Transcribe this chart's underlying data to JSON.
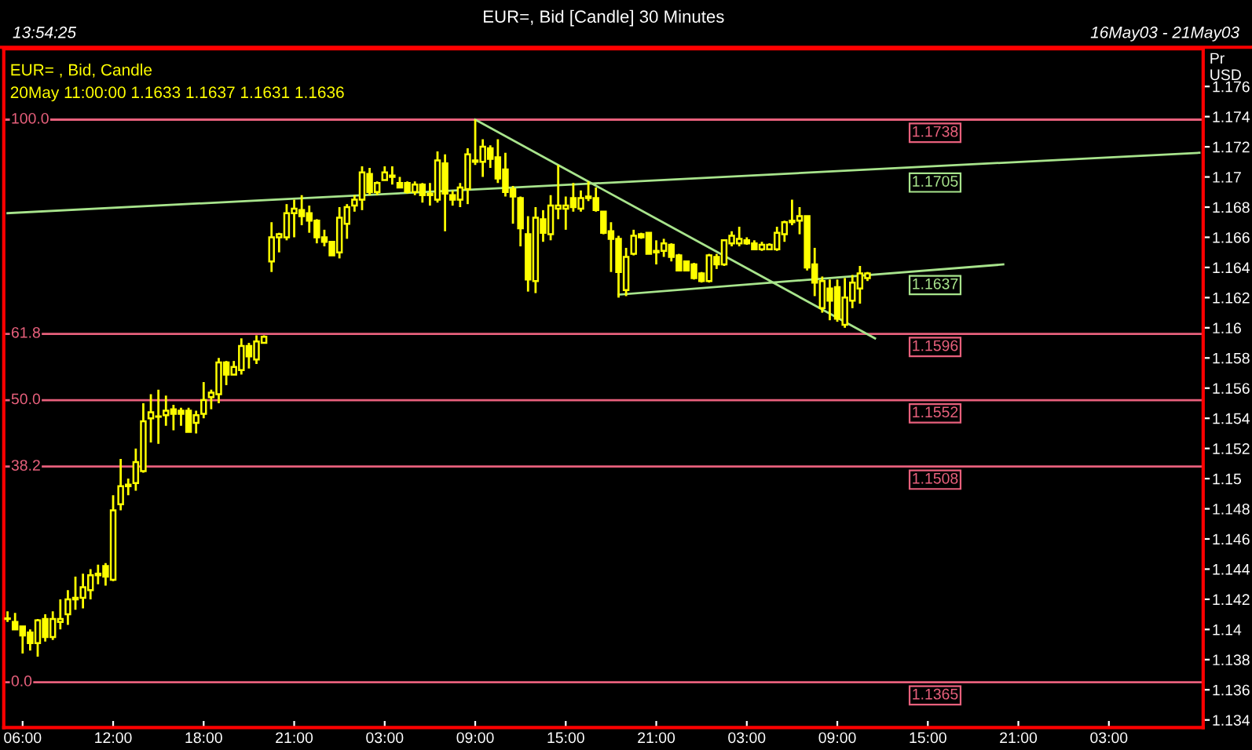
{
  "chart_data": {
    "type": "candlestick",
    "title": "EUR=, Bid [Candle] 30 Minutes",
    "ylabel": "Pr\nUSD",
    "annotations": [
      "13:54:25",
      "16May03 - 21May03",
      "EUR= , Bid, Candle",
      "20May 11:00:00 1.1633 1.1637 1.1631 1.1636",
      {
        "text": "1.1705",
        "y": 1.1705
      },
      {
        "text": "1.1637",
        "y": 1.1637
      },
      {
        "text": "100.0",
        "y": 1.1738
      },
      {
        "text": "61.8",
        "y": 1.1596
      },
      {
        "text": "50.0",
        "y": 1.1552
      },
      {
        "text": "38.2",
        "y": 1.1508
      },
      {
        "text": "0.0",
        "y": 1.1365
      }
    ],
    "color": "#ffff00",
    "categories": [
      null,
      null,
      "06:00",
      null,
      null,
      null,
      null,
      null,
      null,
      null,
      null,
      null,
      null,
      null,
      "12:00",
      null,
      null,
      null,
      null,
      null,
      null,
      null,
      null,
      null,
      null,
      null,
      "18:00",
      null,
      null,
      null,
      null,
      null,
      null,
      null,
      null,
      null,
      null,
      null,
      "21:00",
      null,
      null,
      null,
      null,
      null,
      null,
      null,
      null,
      null,
      null,
      null,
      "03:00",
      null,
      null,
      null,
      null,
      null,
      null,
      null,
      null,
      null,
      null,
      null,
      "09:00",
      null,
      null,
      null,
      null,
      null,
      null,
      null,
      null,
      null,
      null,
      null,
      "15:00",
      null,
      null,
      null,
      null,
      null,
      null,
      null,
      null,
      null,
      null,
      null,
      "21:00",
      null,
      null,
      null,
      null,
      null,
      null,
      null,
      null,
      null,
      null,
      null,
      "03:00",
      null,
      null,
      null,
      null,
      null,
      null,
      null,
      null,
      null,
      null,
      null,
      "09:00",
      null,
      null,
      null,
      null,
      null,
      null,
      null,
      null,
      null,
      null,
      null,
      "15:00",
      null,
      null,
      null,
      null,
      null,
      null,
      null,
      null,
      null,
      null,
      null,
      "21:00",
      null,
      null,
      null,
      null,
      null,
      null,
      null,
      null,
      null,
      null,
      null,
      "03:00",
      null,
      null,
      null,
      null,
      null,
      null,
      null,
      null,
      null,
      null,
      null,
      null
    ],
    "ohlc": [
      [
        1.1407,
        1.1412,
        1.1405,
        1.1407
      ],
      [
        1.1405,
        1.1411,
        1.14,
        1.14
      ],
      [
        1.1402,
        1.1402,
        1.1384,
        1.1396
      ],
      [
        1.1398,
        1.14,
        1.1386,
        1.1391
      ],
      [
        1.1391,
        1.1407,
        1.1382,
        1.1406
      ],
      [
        1.1407,
        1.141,
        1.1392,
        1.1395
      ],
      [
        1.1395,
        1.1412,
        1.1393,
        1.1407
      ],
      [
        1.1405,
        1.142,
        1.14,
        1.1407
      ],
      [
        1.141,
        1.1426,
        1.1403,
        1.142
      ],
      [
        1.1421,
        1.1435,
        1.1413,
        1.142
      ],
      [
        1.1421,
        1.1437,
        1.1414,
        1.1428
      ],
      [
        1.1426,
        1.144,
        1.142,
        1.1436
      ],
      [
        1.1436,
        1.1443,
        1.143,
        1.1437
      ],
      [
        1.1442,
        1.1444,
        1.1429,
        1.1435
      ],
      [
        1.1433,
        1.1489,
        1.1432,
        1.1479
      ],
      [
        1.1483,
        1.1513,
        1.1479,
        1.1495
      ],
      [
        1.1495,
        1.15,
        1.1489,
        1.1496
      ],
      [
        1.1497,
        1.152,
        1.1492,
        1.1511
      ],
      [
        1.1505,
        1.155,
        1.1504,
        1.1538
      ],
      [
        1.154,
        1.1556,
        1.1524,
        1.1544
      ],
      [
        1.1541,
        1.1559,
        1.1523,
        1.1541
      ],
      [
        1.1542,
        1.1555,
        1.1535,
        1.1545
      ],
      [
        1.1546,
        1.1549,
        1.1532,
        1.1543
      ],
      [
        1.1545,
        1.1547,
        1.1535,
        1.1543
      ],
      [
        1.1545,
        1.1547,
        1.1531,
        1.1531
      ],
      [
        1.1537,
        1.1545,
        1.153,
        1.1542
      ],
      [
        1.1543,
        1.1564,
        1.154,
        1.1552
      ],
      [
        1.1554,
        1.1559,
        1.1546,
        1.1557
      ],
      [
        1.1556,
        1.158,
        1.155,
        1.1577
      ],
      [
        1.1577,
        1.1578,
        1.1562,
        1.1569
      ],
      [
        1.1569,
        1.1578,
        1.1569,
        1.1574
      ],
      [
        1.1572,
        1.1593,
        1.1569,
        1.1588
      ],
      [
        1.1588,
        1.159,
        1.1573,
        1.1581
      ],
      [
        1.1579,
        1.1595,
        1.1576,
        1.1591
      ],
      [
        1.159,
        1.1595,
        1.159,
        1.1594
      ],
      [
        1.1644,
        1.167,
        1.1637,
        1.166
      ],
      [
        1.166,
        1.1663,
        1.165,
        1.1662
      ],
      [
        1.166,
        1.1682,
        1.1658,
        1.1676
      ],
      [
        1.1676,
        1.1685,
        1.166,
        1.1679
      ],
      [
        1.1678,
        1.1688,
        1.1668,
        1.1674
      ],
      [
        1.1676,
        1.1681,
        1.1663,
        1.1671
      ],
      [
        1.1671,
        1.1672,
        1.1656,
        1.166
      ],
      [
        1.166,
        1.1665,
        1.1654,
        1.1657
      ],
      [
        1.1657,
        1.1657,
        1.1648,
        1.1648
      ],
      [
        1.165,
        1.168,
        1.1646,
        1.1673
      ],
      [
        1.1669,
        1.1682,
        1.1659,
        1.168
      ],
      [
        1.1681,
        1.1688,
        1.1677,
        1.1685
      ],
      [
        1.1685,
        1.1707,
        1.1678,
        1.1703
      ],
      [
        1.1702,
        1.1706,
        1.1688,
        1.169
      ],
      [
        1.169,
        1.1697,
        1.1688,
        1.1696
      ],
      [
        1.1698,
        1.1707,
        1.1698,
        1.1703
      ],
      [
        1.1701,
        1.1707,
        1.1695,
        1.17
      ],
      [
        1.1696,
        1.17,
        1.1693,
        1.1693
      ],
      [
        1.1696,
        1.1697,
        1.1689,
        1.169
      ],
      [
        1.169,
        1.1697,
        1.1688,
        1.1695
      ],
      [
        1.1695,
        1.1696,
        1.1683,
        1.1688
      ],
      [
        1.1689,
        1.1696,
        1.1681,
        1.1688
      ],
      [
        1.1685,
        1.1717,
        1.1683,
        1.1711
      ],
      [
        1.1709,
        1.1715,
        1.1664,
        1.1689
      ],
      [
        1.1688,
        1.1691,
        1.1681,
        1.1685
      ],
      [
        1.1685,
        1.1696,
        1.168,
        1.1693
      ],
      [
        1.1692,
        1.1719,
        1.1682,
        1.1715
      ],
      [
        1.1711,
        1.1738,
        1.1708,
        1.171
      ],
      [
        1.171,
        1.1725,
        1.17,
        1.172
      ],
      [
        1.1719,
        1.1721,
        1.1706,
        1.1712
      ],
      [
        1.1713,
        1.1725,
        1.1696,
        1.1699
      ],
      [
        1.1705,
        1.1716,
        1.1687,
        1.169
      ],
      [
        1.1692,
        1.1694,
        1.1669,
        1.1687
      ],
      [
        1.1686,
        1.1687,
        1.1654,
        1.1666
      ],
      [
        1.1662,
        1.1674,
        1.1624,
        1.1632
      ],
      [
        1.1631,
        1.168,
        1.1623,
        1.1673
      ],
      [
        1.1672,
        1.1678,
        1.1657,
        1.1663
      ],
      [
        1.1662,
        1.1688,
        1.1658,
        1.1681
      ],
      [
        1.1679,
        1.1708,
        1.1672,
        1.1681
      ],
      [
        1.1679,
        1.1687,
        1.1665,
        1.1681
      ],
      [
        1.1686,
        1.1696,
        1.1677,
        1.168
      ],
      [
        1.1679,
        1.1691,
        1.1677,
        1.1686
      ],
      [
        1.1687,
        1.1697,
        1.1684,
        1.1686
      ],
      [
        1.1686,
        1.1693,
        1.1677,
        1.1678
      ],
      [
        1.1677,
        1.1677,
        1.1662,
        1.1663
      ],
      [
        1.1664,
        1.167,
        1.1637,
        1.1659
      ],
      [
        1.1659,
        1.1661,
        1.162,
        1.1637
      ],
      [
        1.1625,
        1.1653,
        1.1621,
        1.1647
      ],
      [
        1.1649,
        1.1665,
        1.1648,
        1.1661
      ],
      [
        1.1662,
        1.1663,
        1.1659,
        1.166
      ],
      [
        1.1663,
        1.1663,
        1.1649,
        1.1649
      ],
      [
        1.1651,
        1.1658,
        1.1642,
        1.165
      ],
      [
        1.1651,
        1.1659,
        1.1647,
        1.1656
      ],
      [
        1.1655,
        1.1656,
        1.1644,
        1.1647
      ],
      [
        1.1648,
        1.1649,
        1.1638,
        1.1638
      ],
      [
        1.1644,
        1.1644,
        1.1638,
        1.1638
      ],
      [
        1.1642,
        1.1643,
        1.1632,
        1.1633
      ],
      [
        1.1636,
        1.1637,
        1.163,
        1.1631
      ],
      [
        1.1631,
        1.1649,
        1.163,
        1.1648
      ],
      [
        1.1647,
        1.1649,
        1.1639,
        1.1642
      ],
      [
        1.1642,
        1.1658,
        1.1641,
        1.1658
      ],
      [
        1.1656,
        1.1664,
        1.1654,
        1.1661
      ],
      [
        1.1656,
        1.1667,
        1.1654,
        1.1659
      ],
      [
        1.1658,
        1.166,
        1.1655,
        1.1656
      ],
      [
        1.1656,
        1.1658,
        1.1652,
        1.1652
      ],
      [
        1.1652,
        1.1657,
        1.1651,
        1.1655
      ],
      [
        1.1652,
        1.1656,
        1.1652,
        1.1655
      ],
      [
        1.1652,
        1.1667,
        1.1651,
        1.1663
      ],
      [
        1.1662,
        1.1671,
        1.1657,
        1.167
      ],
      [
        1.167,
        1.1685,
        1.1668,
        1.1671
      ],
      [
        1.1671,
        1.168,
        1.1662,
        1.1674
      ],
      [
        1.1674,
        1.1674,
        1.1638,
        1.164
      ],
      [
        1.1642,
        1.1653,
        1.1621,
        1.163
      ],
      [
        1.1613,
        1.1634,
        1.161,
        1.1631
      ],
      [
        1.1626,
        1.1632,
        1.1605,
        1.1618
      ],
      [
        1.1627,
        1.1632,
        1.1604,
        1.1606
      ],
      [
        1.1602,
        1.1633,
        1.16,
        1.162
      ],
      [
        1.1618,
        1.1635,
        1.1613,
        1.163
      ],
      [
        1.1626,
        1.1641,
        1.1616,
        1.1636
      ],
      [
        1.1633,
        1.1637,
        1.1631,
        1.1636
      ],
      null,
      null,
      null,
      null,
      null,
      null,
      null,
      null,
      null,
      null,
      null,
      null,
      null,
      null,
      null,
      null,
      null,
      null,
      null,
      null,
      null,
      null,
      null,
      null,
      null,
      null,
      null,
      null,
      null,
      null,
      null,
      null,
      null,
      null,
      null,
      null,
      null,
      null,
      null,
      null,
      null,
      null,
      null,
      null
    ],
    "series": [
      {
        "type": "line",
        "color": "#a8e48c",
        "values": [
          1.1676,
          null,
          null,
          null,
          null,
          null,
          null,
          null,
          null,
          null,
          null,
          null,
          null,
          null,
          null,
          null,
          null,
          null,
          null,
          null,
          null,
          null,
          null,
          null,
          null,
          null,
          null,
          null,
          null,
          null,
          null,
          null,
          null,
          null,
          null,
          null,
          null,
          null,
          null,
          null,
          null,
          null,
          null,
          null,
          null,
          null,
          null,
          null,
          null,
          null,
          null,
          null,
          null,
          null,
          null,
          null,
          null,
          null,
          null,
          null,
          null,
          null,
          null,
          null,
          null,
          null,
          null,
          null,
          null,
          null,
          null,
          null,
          null,
          null,
          null,
          null,
          null,
          null,
          null,
          null,
          null,
          null,
          null,
          null,
          null,
          null,
          null,
          null,
          null,
          null,
          null,
          null,
          null,
          null,
          null,
          null,
          null,
          null,
          null,
          null,
          null,
          null,
          null,
          null,
          null,
          null,
          null,
          null,
          null,
          null,
          null,
          null,
          null,
          null,
          null,
          null,
          null,
          null,
          null,
          null,
          null,
          null,
          null,
          null,
          null,
          null,
          null,
          null,
          null,
          null,
          null,
          null,
          null,
          null,
          null,
          null,
          null,
          null,
          null,
          null,
          null,
          null,
          null,
          null,
          null,
          null,
          null,
          null,
          null,
          null,
          null,
          null,
          null,
          null,
          null,
          null,
          null,
          null,
          1.1716
        ]
      },
      {
        "type": "line",
        "color": "#a8e48c",
        "values": [
          null,
          null,
          null,
          null,
          null,
          null,
          null,
          null,
          null,
          null,
          null,
          null,
          null,
          null,
          null,
          null,
          null,
          null,
          null,
          null,
          null,
          null,
          null,
          null,
          null,
          null,
          null,
          null,
          null,
          null,
          null,
          null,
          null,
          null,
          null,
          null,
          null,
          null,
          null,
          null,
          null,
          null,
          null,
          null,
          null,
          null,
          null,
          null,
          null,
          null,
          null,
          null,
          null,
          null,
          null,
          null,
          null,
          null,
          null,
          null,
          null,
          null,
          null,
          null,
          null,
          null,
          null,
          null,
          null,
          null,
          null,
          null,
          null,
          null,
          null,
          null,
          null,
          null,
          null,
          null,
          null,
          1.1622,
          null,
          null,
          null,
          null,
          null,
          null,
          null,
          null,
          null,
          null,
          null,
          null,
          null,
          null,
          null,
          null,
          null,
          null,
          null,
          null,
          null,
          null,
          null,
          null,
          null,
          null,
          null,
          null,
          null,
          null,
          null,
          null,
          null,
          null,
          null,
          null,
          null,
          null,
          null,
          null,
          null,
          null,
          null,
          null,
          null,
          null,
          null,
          null,
          null,
          null,
          1.1642,
          null,
          null,
          null,
          null,
          null,
          null,
          null,
          null,
          null,
          null,
          null,
          null,
          null,
          null,
          null,
          null,
          null,
          null,
          null,
          null,
          null,
          null,
          null,
          null,
          null,
          null
        ]
      },
      {
        "type": "line",
        "color": "#a8e48c",
        "values": [
          null,
          null,
          null,
          null,
          null,
          null,
          null,
          null,
          null,
          null,
          null,
          null,
          null,
          null,
          null,
          null,
          null,
          null,
          null,
          null,
          null,
          null,
          null,
          null,
          null,
          null,
          null,
          null,
          null,
          null,
          null,
          null,
          null,
          null,
          null,
          null,
          null,
          null,
          null,
          null,
          null,
          null,
          null,
          null,
          null,
          null,
          null,
          null,
          null,
          null,
          null,
          null,
          null,
          null,
          null,
          null,
          null,
          null,
          null,
          null,
          null,
          null,
          1.1738,
          null,
          null,
          null,
          null,
          null,
          null,
          null,
          null,
          null,
          null,
          null,
          null,
          null,
          null,
          null,
          null,
          null,
          null,
          null,
          null,
          null,
          null,
          null,
          null,
          null,
          null,
          null,
          null,
          null,
          null,
          null,
          null,
          null,
          null,
          null,
          null,
          null,
          null,
          null,
          null,
          null,
          null,
          null,
          null,
          null,
          null,
          null,
          null,
          null,
          null,
          null,
          null,
          1.1593,
          null,
          null,
          null,
          null,
          null,
          null,
          null,
          null,
          null,
          null,
          null,
          null,
          null,
          null,
          null,
          null,
          null,
          null,
          null,
          null,
          null,
          null,
          null,
          null,
          null,
          null,
          null,
          null,
          null,
          null,
          null,
          null,
          null,
          null,
          null,
          null,
          null,
          null,
          null,
          null,
          null,
          null,
          null
        ]
      }
    ],
    "ref_lines": [
      {
        "axis": "y",
        "value": 1.1738,
        "label": "1.1738",
        "color": "#e8607c"
      },
      {
        "axis": "y",
        "value": 1.1596,
        "label": "1.1596",
        "color": "#e8607c"
      },
      {
        "axis": "y",
        "value": 1.1552,
        "label": "1.1552",
        "color": "#e8607c"
      },
      {
        "axis": "y",
        "value": 1.1508,
        "label": "1.1508",
        "color": "#e8607c"
      },
      {
        "axis": "y",
        "value": 1.1365,
        "label": "1.1365",
        "color": "#e8607c"
      }
    ],
    "ylim": [
      1.1335,
      1.1785
    ],
    "yticks": [
      1.134,
      1.136,
      1.138,
      1.14,
      1.142,
      1.144,
      1.146,
      1.148,
      1.15,
      1.152,
      1.154,
      1.156,
      1.158,
      1.16,
      1.162,
      1.164,
      1.166,
      1.168,
      1.17,
      1.172,
      1.174,
      1.176
    ],
    "grid": false,
    "legend": false
  }
}
